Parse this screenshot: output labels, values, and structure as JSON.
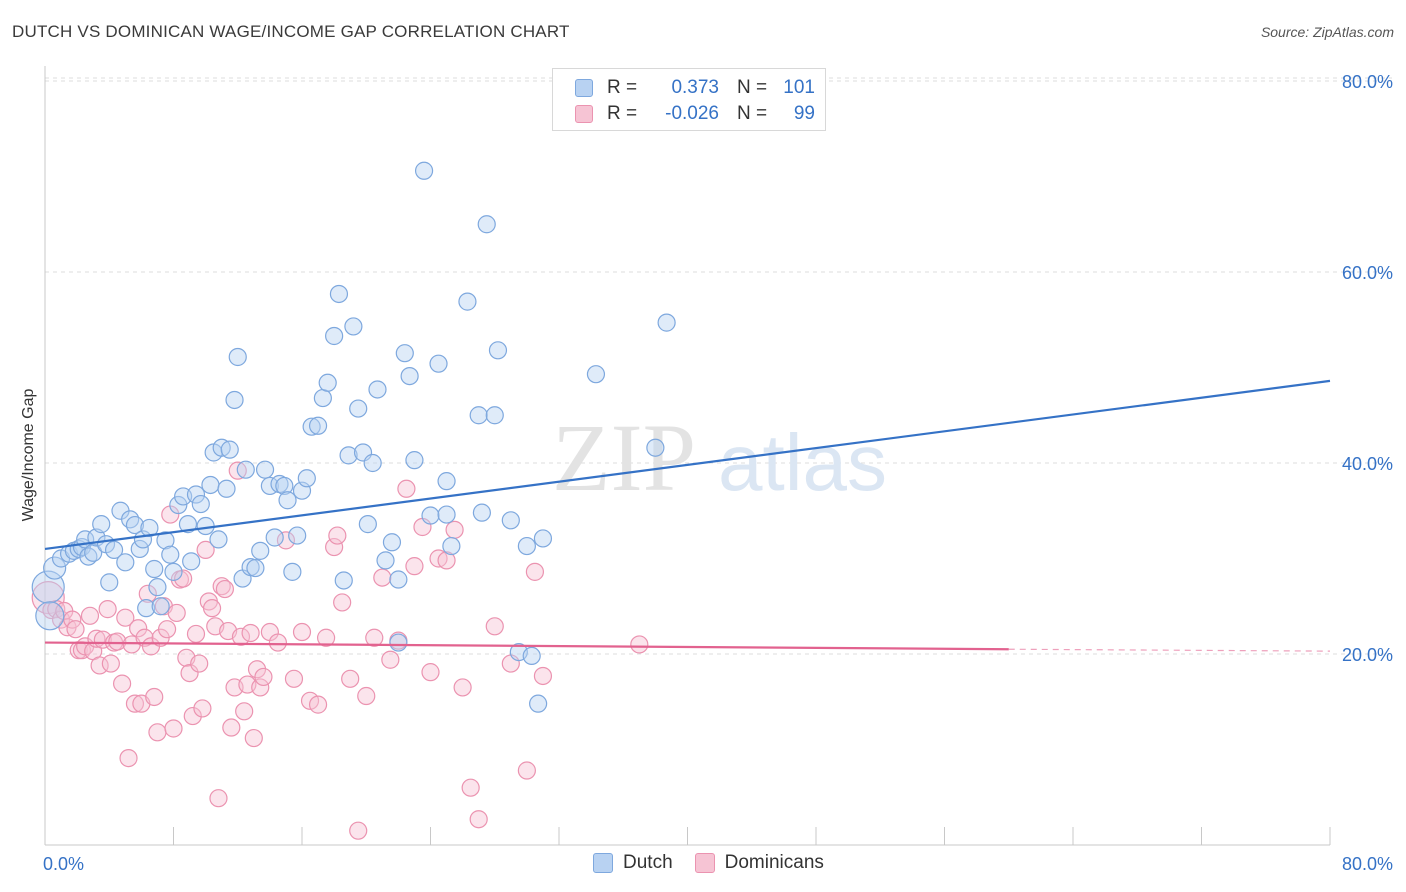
{
  "title": "DUTCH VS DOMINICAN WAGE/INCOME GAP CORRELATION CHART",
  "source": "Source: ZipAtlas.com",
  "watermark": {
    "zip": "ZIP",
    "atlas": "atlas"
  },
  "colors": {
    "dutch_fill": "#b8d2f2",
    "dutch_stroke": "#7ea8de",
    "dutch_line": "#3572c6",
    "dominican_fill": "#f6c4d4",
    "dominican_stroke": "#eb93b0",
    "dominican_line": "#e2628f",
    "axis_label": "#3572c6",
    "grid": "#dcdcdc"
  },
  "legend": {
    "rows": [
      {
        "r_label": "R =",
        "r_value": "0.373",
        "n_label": "N =",
        "n_value": "101"
      },
      {
        "r_label": "R =",
        "r_value": "-0.026",
        "n_label": "N =",
        "n_value": "99"
      }
    ]
  },
  "bottom_legend": [
    "Dutch",
    "Dominicans"
  ],
  "chart_data": {
    "type": "scatter",
    "title": "DUTCH VS DOMINICAN WAGE/INCOME GAP CORRELATION CHART",
    "xlabel": "",
    "ylabel": "Wage/Income Gap",
    "xlim": [
      0,
      80
    ],
    "ylim": [
      0,
      82
    ],
    "x_tick_labels": [
      "0.0%",
      "80.0%"
    ],
    "y_ticks": [
      20,
      40,
      60,
      80
    ],
    "y_tick_labels": [
      "20.0%",
      "40.0%",
      "60.0%",
      "80.0%"
    ],
    "grid": "horizontal dashed",
    "legend_position": "top-center",
    "series": [
      {
        "name": "Dutch",
        "r": 0.373,
        "n": 101,
        "trend": {
          "x": [
            0,
            80
          ],
          "y": [
            31.0,
            48.6
          ]
        },
        "points": [
          [
            0.2,
            27.0
          ],
          [
            0.3,
            24.0
          ],
          [
            0.6,
            29.0
          ],
          [
            1.0,
            30.0
          ],
          [
            1.5,
            30.5
          ],
          [
            1.8,
            30.8
          ],
          [
            2.1,
            31.0
          ],
          [
            2.3,
            31.2
          ],
          [
            2.5,
            32.0
          ],
          [
            2.7,
            30.2
          ],
          [
            3.0,
            30.6
          ],
          [
            3.2,
            32.2
          ],
          [
            3.5,
            33.6
          ],
          [
            3.8,
            31.5
          ],
          [
            4.0,
            27.5
          ],
          [
            4.3,
            30.9
          ],
          [
            4.7,
            35.0
          ],
          [
            5.0,
            29.6
          ],
          [
            5.3,
            34.1
          ],
          [
            5.6,
            33.5
          ],
          [
            5.9,
            31.0
          ],
          [
            6.1,
            32.0
          ],
          [
            6.3,
            24.8
          ],
          [
            6.5,
            33.2
          ],
          [
            6.8,
            28.9
          ],
          [
            7.0,
            27.0
          ],
          [
            7.2,
            25.0
          ],
          [
            7.5,
            31.9
          ],
          [
            7.8,
            30.4
          ],
          [
            8.0,
            28.6
          ],
          [
            8.3,
            35.6
          ],
          [
            8.6,
            36.5
          ],
          [
            8.9,
            33.6
          ],
          [
            9.1,
            29.7
          ],
          [
            9.4,
            36.7
          ],
          [
            9.7,
            35.7
          ],
          [
            10.0,
            33.4
          ],
          [
            10.3,
            37.7
          ],
          [
            10.5,
            41.1
          ],
          [
            10.8,
            32.0
          ],
          [
            11.0,
            41.6
          ],
          [
            11.3,
            37.3
          ],
          [
            11.5,
            41.4
          ],
          [
            11.8,
            46.6
          ],
          [
            12.0,
            51.1
          ],
          [
            12.3,
            27.9
          ],
          [
            12.5,
            39.3
          ],
          [
            12.8,
            29.1
          ],
          [
            13.1,
            29.0
          ],
          [
            13.4,
            30.8
          ],
          [
            13.7,
            39.3
          ],
          [
            14.0,
            37.6
          ],
          [
            14.3,
            32.2
          ],
          [
            14.6,
            37.8
          ],
          [
            14.9,
            37.6
          ],
          [
            15.1,
            36.1
          ],
          [
            15.4,
            28.6
          ],
          [
            15.7,
            32.4
          ],
          [
            16.0,
            37.1
          ],
          [
            16.3,
            38.4
          ],
          [
            16.6,
            43.8
          ],
          [
            17.0,
            43.9
          ],
          [
            17.3,
            46.8
          ],
          [
            17.6,
            48.4
          ],
          [
            18.0,
            53.3
          ],
          [
            18.3,
            57.7
          ],
          [
            18.6,
            27.7
          ],
          [
            18.9,
            40.8
          ],
          [
            19.2,
            54.3
          ],
          [
            19.5,
            45.7
          ],
          [
            19.8,
            41.1
          ],
          [
            20.1,
            33.6
          ],
          [
            20.4,
            40.0
          ],
          [
            20.7,
            47.7
          ],
          [
            21.2,
            29.8
          ],
          [
            21.6,
            31.7
          ],
          [
            22.0,
            27.8
          ],
          [
            22.0,
            21.2
          ],
          [
            22.4,
            51.5
          ],
          [
            22.7,
            49.1
          ],
          [
            23.0,
            40.3
          ],
          [
            23.6,
            70.6
          ],
          [
            24.0,
            34.5
          ],
          [
            24.5,
            50.4
          ],
          [
            25.0,
            38.1
          ],
          [
            25.0,
            34.6
          ],
          [
            25.3,
            31.3
          ],
          [
            26.3,
            56.9
          ],
          [
            27.0,
            45.0
          ],
          [
            27.2,
            34.8
          ],
          [
            27.5,
            65.0
          ],
          [
            28.0,
            45.0
          ],
          [
            28.2,
            51.8
          ],
          [
            29.0,
            34.0
          ],
          [
            29.5,
            20.2
          ],
          [
            30.0,
            31.3
          ],
          [
            30.3,
            19.8
          ],
          [
            30.7,
            14.8
          ],
          [
            31.0,
            32.1
          ],
          [
            34.3,
            49.3
          ],
          [
            38.0,
            41.6
          ],
          [
            38.7,
            54.7
          ]
        ]
      },
      {
        "name": "Dominicans",
        "r": -0.026,
        "n": 99,
        "trend": {
          "x": [
            0,
            60
          ],
          "y": [
            21.2,
            20.5
          ]
        },
        "trend_dashed": {
          "x": [
            60,
            80
          ],
          "y": [
            20.5,
            20.3
          ]
        },
        "points": [
          [
            0.2,
            25.9
          ],
          [
            0.4,
            24.6
          ],
          [
            0.7,
            24.7
          ],
          [
            1.0,
            23.6
          ],
          [
            1.2,
            24.5
          ],
          [
            1.4,
            22.8
          ],
          [
            1.7,
            23.6
          ],
          [
            1.9,
            22.6
          ],
          [
            2.1,
            20.4
          ],
          [
            2.3,
            20.4
          ],
          [
            2.5,
            20.8
          ],
          [
            2.8,
            24.0
          ],
          [
            3.0,
            20.3
          ],
          [
            3.2,
            21.6
          ],
          [
            3.4,
            18.8
          ],
          [
            3.6,
            21.5
          ],
          [
            3.9,
            24.7
          ],
          [
            4.1,
            19.0
          ],
          [
            4.3,
            21.2
          ],
          [
            4.5,
            21.3
          ],
          [
            4.8,
            16.9
          ],
          [
            5.0,
            23.8
          ],
          [
            5.2,
            9.1
          ],
          [
            5.4,
            21.0
          ],
          [
            5.6,
            14.8
          ],
          [
            5.8,
            22.7
          ],
          [
            6.0,
            14.8
          ],
          [
            6.2,
            21.7
          ],
          [
            6.4,
            26.3
          ],
          [
            6.6,
            20.8
          ],
          [
            6.8,
            15.5
          ],
          [
            7.0,
            11.8
          ],
          [
            7.2,
            21.7
          ],
          [
            7.4,
            25.0
          ],
          [
            7.6,
            22.6
          ],
          [
            7.8,
            34.6
          ],
          [
            8.0,
            12.2
          ],
          [
            8.2,
            24.3
          ],
          [
            8.4,
            27.8
          ],
          [
            8.6,
            27.9
          ],
          [
            8.8,
            19.6
          ],
          [
            9.0,
            18.0
          ],
          [
            9.2,
            13.5
          ],
          [
            9.4,
            22.1
          ],
          [
            9.6,
            19.0
          ],
          [
            9.8,
            14.3
          ],
          [
            10.0,
            30.9
          ],
          [
            10.2,
            25.5
          ],
          [
            10.4,
            24.8
          ],
          [
            10.6,
            22.9
          ],
          [
            10.8,
            4.9
          ],
          [
            11.0,
            27.1
          ],
          [
            11.2,
            26.8
          ],
          [
            11.4,
            22.4
          ],
          [
            11.6,
            12.3
          ],
          [
            11.8,
            16.5
          ],
          [
            12.0,
            39.2
          ],
          [
            12.2,
            21.8
          ],
          [
            12.4,
            14.0
          ],
          [
            12.6,
            16.8
          ],
          [
            12.8,
            22.2
          ],
          [
            13.0,
            11.2
          ],
          [
            13.2,
            18.4
          ],
          [
            13.4,
            16.5
          ],
          [
            13.6,
            17.6
          ],
          [
            14.0,
            22.3
          ],
          [
            14.5,
            21.2
          ],
          [
            15.0,
            31.9
          ],
          [
            15.5,
            17.4
          ],
          [
            16.0,
            22.3
          ],
          [
            16.5,
            15.1
          ],
          [
            17.0,
            14.7
          ],
          [
            17.5,
            21.7
          ],
          [
            18.0,
            31.2
          ],
          [
            18.2,
            32.4
          ],
          [
            18.5,
            25.4
          ],
          [
            19.0,
            17.4
          ],
          [
            19.5,
            1.5
          ],
          [
            20.0,
            15.6
          ],
          [
            20.5,
            21.7
          ],
          [
            21.0,
            28.0
          ],
          [
            21.5,
            19.4
          ],
          [
            22.0,
            21.4
          ],
          [
            22.5,
            37.3
          ],
          [
            23.0,
            29.2
          ],
          [
            23.5,
            33.3
          ],
          [
            24.0,
            18.1
          ],
          [
            24.5,
            30.0
          ],
          [
            25.0,
            29.8
          ],
          [
            25.5,
            33.0
          ],
          [
            26.0,
            16.5
          ],
          [
            26.5,
            6.0
          ],
          [
            27.0,
            2.7
          ],
          [
            28.0,
            22.9
          ],
          [
            29.0,
            19.0
          ],
          [
            30.0,
            7.8
          ],
          [
            30.5,
            28.6
          ],
          [
            31.0,
            17.7
          ],
          [
            37.0,
            21.0
          ]
        ]
      }
    ]
  }
}
